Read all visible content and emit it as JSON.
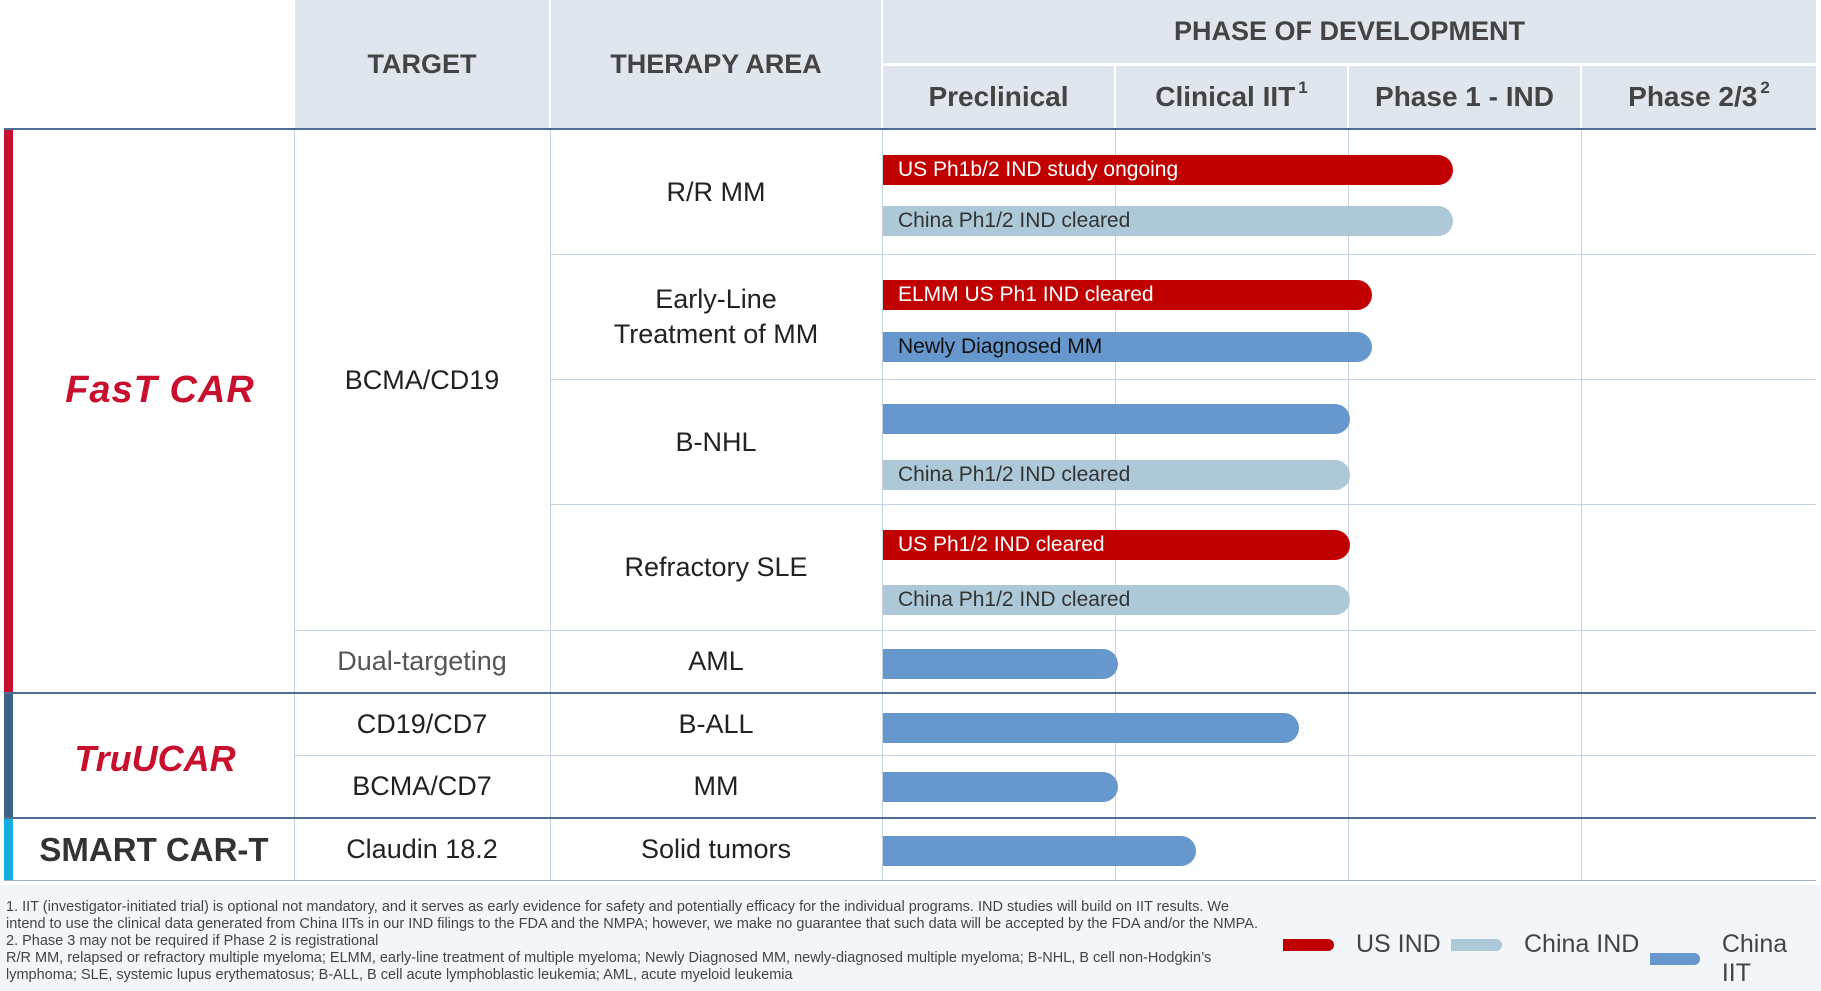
{
  "header": {
    "target": "TARGET",
    "therapy_area": "THERAPY AREA",
    "phase_of_development": "PHASE OF DEVELOPMENT",
    "preclinical": "Preclinical",
    "clinical_iit": "Clinical IIT",
    "clinical_iit_sup": "1",
    "phase1": "Phase 1 - IND",
    "phase23": "Phase 2/3",
    "phase23_sup": "2"
  },
  "programs": {
    "fastcar": "FasT CAR",
    "trucar": "TruUCAR",
    "smart": "SMART CAR-T"
  },
  "rows": {
    "targets": [
      "BCMA/CD19",
      "Dual-targeting",
      "CD19/CD7",
      "BCMA/CD7",
      "Claudin 18.2"
    ],
    "areas": [
      "R/R MM",
      "Early-Line Treatment of MM",
      "B-NHL",
      "Refractory SLE",
      "AML",
      "B-ALL",
      "MM",
      "Solid tumors"
    ]
  },
  "bars": {
    "rrmm_us": "US Ph1b/2 IND study ongoing",
    "rrmm_cn": "China Ph1/2 IND cleared",
    "elmm_us": "ELMM US Ph1 IND cleared",
    "elmm_iit": "Newly Diagnosed MM",
    "bnhl_cn": "China Ph1/2 IND cleared",
    "sle_us": "US Ph1/2 IND cleared",
    "sle_cn": "China Ph1/2 IND cleared"
  },
  "footnotes": {
    "n1a": "1.   IIT (investigator-initiated trial) is optional not mandatory, and it serves as early evidence for safety and potentially efficacy for the individual programs. IND studies will build on IIT results. We",
    "n1b": "      intend to use the clinical data generated from China IITs in our IND filings to the FDA and the NMPA; however, we make no guarantee that such data will be accepted by the FDA and/or the NMPA.",
    "n2": "2.   Phase 3 may not be required if Phase 2 is registrational",
    "abbr1": "R/R MM, relapsed or refractory multiple myeloma; ELMM, early-line treatment of multiple myeloma; Newly Diagnosed MM, newly-diagnosed multiple myeloma; B-NHL, B cell non-Hodgkin’s",
    "abbr2": "lymphoma; SLE, systemic lupus erythematosus; B-ALL, B cell acute lymphoblastic leukemia; AML, acute myeloid leukemia"
  },
  "legend": {
    "us": "US IND",
    "china": "China IND",
    "iit": "China IIT"
  },
  "colors": {
    "us_ind": "#c00000",
    "china_ind": "#adc9d7",
    "china_iit": "#6697cd",
    "fastcar_brand": "#c8102e",
    "trucar_bar": "#3c6288",
    "smart_bar": "#16aee0",
    "header_bg": "#dfe6ee"
  }
}
